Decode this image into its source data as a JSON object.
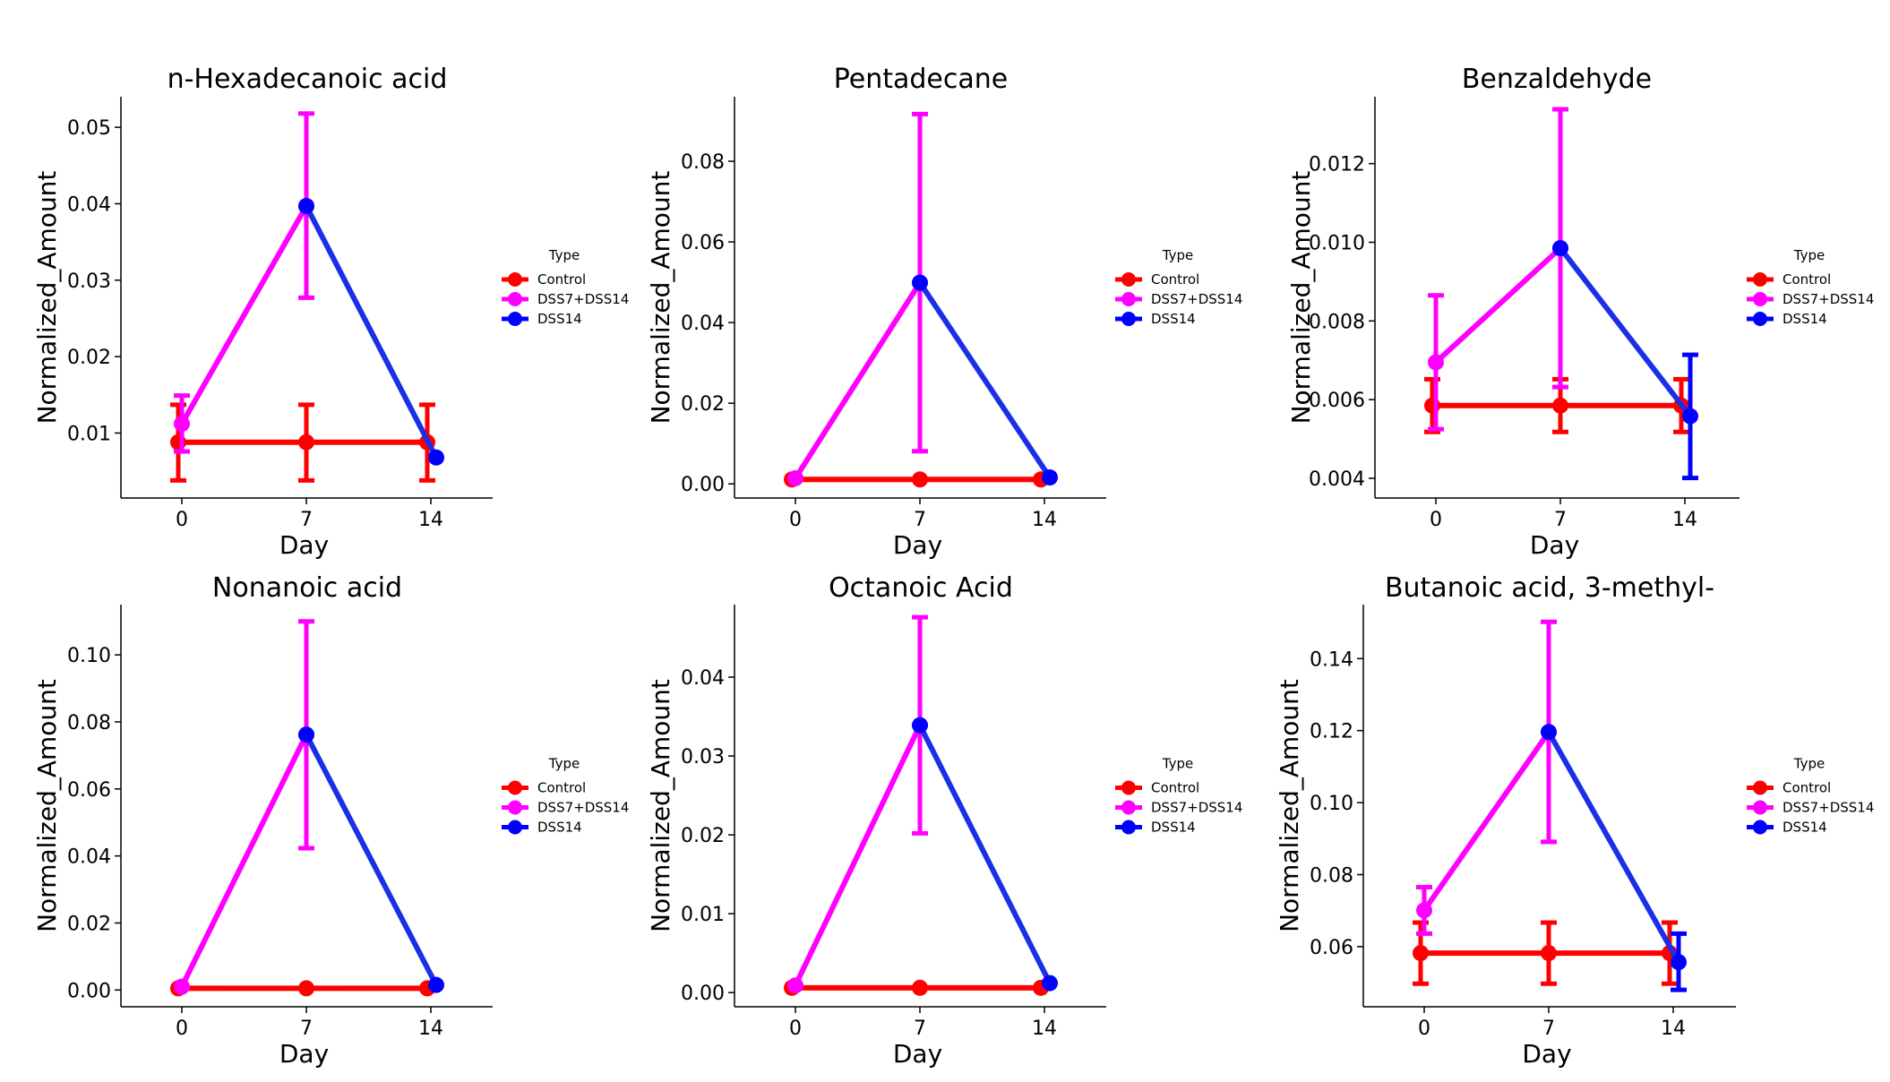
{
  "legend": {
    "title": "Type",
    "entries": [
      {
        "name": "Control",
        "color": "#ff0000"
      },
      {
        "name": "DSS7+DSS14",
        "color": "#ff00ff"
      },
      {
        "name": "DSS14",
        "color": "#0000ff"
      }
    ]
  },
  "chart_data": [
    {
      "type": "line",
      "title": "n-Hexadecanoic acid",
      "xlabel": "Day",
      "ylabel": "Normalized_Amount",
      "xticks": [
        "0",
        "7",
        "14"
      ],
      "ylim": [
        0.0015,
        0.054
      ],
      "yticks": [
        0.01,
        0.02,
        0.03,
        0.04,
        0.05
      ],
      "yticklabels": [
        "0.01",
        "0.02",
        "0.03",
        "0.04",
        "0.05"
      ],
      "grid": false,
      "legend_position": "right",
      "series": [
        {
          "name": "Control",
          "points": [
            {
              "x": 0,
              "y": 0.0088,
              "err_low": 0.0038,
              "err_high": 0.0137
            },
            {
              "x": 7,
              "y": 0.0088,
              "err_low": 0.0038,
              "err_high": 0.0137
            },
            {
              "x": 14,
              "y": 0.0088,
              "err_low": 0.0038,
              "err_high": 0.0137
            }
          ]
        },
        {
          "name": "DSS7+DSS14",
          "points": [
            {
              "x": 0,
              "y": 0.0112,
              "err_low": 0.0076,
              "err_high": 0.0149
            },
            {
              "x": 7,
              "y": 0.0397,
              "err_low": 0.0277,
              "err_high": 0.0518
            }
          ]
        },
        {
          "name": "DSS14",
          "points": [
            {
              "x": 7,
              "y": 0.0397
            },
            {
              "x": 14,
              "y": 0.0068
            }
          ]
        }
      ]
    },
    {
      "type": "line",
      "title": "Pentadecane",
      "xlabel": "Day",
      "ylabel": "Normalized_Amount",
      "xticks": [
        "0",
        "7",
        "14"
      ],
      "ylim": [
        -0.0035,
        0.096
      ],
      "yticks": [
        0.0,
        0.02,
        0.04,
        0.06,
        0.08
      ],
      "yticklabels": [
        "0.00",
        "0.02",
        "0.04",
        "0.06",
        "0.08"
      ],
      "grid": false,
      "legend_position": "right",
      "series": [
        {
          "name": "Control",
          "points": [
            {
              "x": 0,
              "y": 0.0011
            },
            {
              "x": 7,
              "y": 0.0011
            },
            {
              "x": 14,
              "y": 0.0011
            }
          ]
        },
        {
          "name": "DSS7+DSS14",
          "points": [
            {
              "x": 0,
              "y": 0.0014
            },
            {
              "x": 7,
              "y": 0.0499,
              "err_low": 0.0081,
              "err_high": 0.0917
            }
          ]
        },
        {
          "name": "DSS14",
          "points": [
            {
              "x": 7,
              "y": 0.0499
            },
            {
              "x": 14,
              "y": 0.0016
            }
          ]
        }
      ]
    },
    {
      "type": "line",
      "title": "Benzaldehyde",
      "xlabel": "Day",
      "ylabel": "Normalized_Amount",
      "xticks": [
        "0",
        "7",
        "14"
      ],
      "ylim": [
        0.0035,
        0.0137
      ],
      "yticks": [
        0.004,
        0.006,
        0.008,
        0.01,
        0.012
      ],
      "yticklabels": [
        "0.004",
        "0.006",
        "0.008",
        "0.010",
        "0.012"
      ],
      "grid": false,
      "legend_position": "right",
      "series": [
        {
          "name": "Control",
          "points": [
            {
              "x": 0,
              "y": 0.00585,
              "err_low": 0.00518,
              "err_high": 0.00652
            },
            {
              "x": 7,
              "y": 0.00585,
              "err_low": 0.00518,
              "err_high": 0.00652
            },
            {
              "x": 14,
              "y": 0.00585,
              "err_low": 0.00518,
              "err_high": 0.00652
            }
          ]
        },
        {
          "name": "DSS7+DSS14",
          "points": [
            {
              "x": 0,
              "y": 0.00695,
              "err_low": 0.00525,
              "err_high": 0.00865
            },
            {
              "x": 7,
              "y": 0.00985,
              "err_low": 0.00632,
              "err_high": 0.01338
            }
          ]
        },
        {
          "name": "DSS14",
          "points": [
            {
              "x": 7,
              "y": 0.00985
            },
            {
              "x": 14,
              "y": 0.00558,
              "err_low": 0.00401,
              "err_high": 0.00714
            }
          ]
        }
      ]
    },
    {
      "type": "line",
      "title": "Nonanoic acid",
      "xlabel": "Day",
      "ylabel": "Normalized_Amount",
      "xticks": [
        "0",
        "7",
        "14"
      ],
      "ylim": [
        -0.005,
        0.115
      ],
      "yticks": [
        0.0,
        0.02,
        0.04,
        0.06,
        0.08,
        0.1
      ],
      "yticklabels": [
        "0.00",
        "0.02",
        "0.04",
        "0.06",
        "0.08",
        "0.10"
      ],
      "grid": false,
      "legend_position": "right",
      "series": [
        {
          "name": "Control",
          "points": [
            {
              "x": 0,
              "y": 0.0005
            },
            {
              "x": 7,
              "y": 0.0005
            },
            {
              "x": 14,
              "y": 0.0005
            }
          ]
        },
        {
          "name": "DSS7+DSS14",
          "points": [
            {
              "x": 0,
              "y": 0.001
            },
            {
              "x": 7,
              "y": 0.0762,
              "err_low": 0.0423,
              "err_high": 0.11
            }
          ]
        },
        {
          "name": "DSS14",
          "points": [
            {
              "x": 7,
              "y": 0.0762
            },
            {
              "x": 14,
              "y": 0.0015
            }
          ]
        }
      ]
    },
    {
      "type": "line",
      "title": "Octanoic Acid",
      "xlabel": "Day",
      "ylabel": "Normalized_Amount",
      "xticks": [
        "0",
        "7",
        "14"
      ],
      "ylim": [
        -0.0018,
        0.0492
      ],
      "yticks": [
        0.0,
        0.01,
        0.02,
        0.03,
        0.04
      ],
      "yticklabels": [
        "0.00",
        "0.01",
        "0.02",
        "0.03",
        "0.04"
      ],
      "grid": false,
      "legend_position": "right",
      "series": [
        {
          "name": "Control",
          "points": [
            {
              "x": 0,
              "y": 0.0006
            },
            {
              "x": 7,
              "y": 0.0006
            },
            {
              "x": 14,
              "y": 0.0006
            }
          ]
        },
        {
          "name": "DSS7+DSS14",
          "points": [
            {
              "x": 0,
              "y": 0.0009
            },
            {
              "x": 7,
              "y": 0.0339,
              "err_low": 0.0202,
              "err_high": 0.0476
            }
          ]
        },
        {
          "name": "DSS14",
          "points": [
            {
              "x": 7,
              "y": 0.0339
            },
            {
              "x": 14,
              "y": 0.0012
            }
          ]
        }
      ]
    },
    {
      "type": "line",
      "title": "Butanoic acid, 3-methyl-",
      "xlabel": "Day",
      "ylabel": "Normalized_Amount",
      "xticks": [
        "0",
        "7",
        "14"
      ],
      "ylim": [
        0.0433,
        0.155
      ],
      "yticks": [
        0.06,
        0.08,
        0.1,
        0.12,
        0.14
      ],
      "yticklabels": [
        "0.06",
        "0.08",
        "0.10",
        "0.12",
        "0.14"
      ],
      "grid": false,
      "legend_position": "right",
      "series": [
        {
          "name": "Control",
          "points": [
            {
              "x": 0,
              "y": 0.0582,
              "err_low": 0.0497,
              "err_high": 0.0667
            },
            {
              "x": 7,
              "y": 0.0582,
              "err_low": 0.0497,
              "err_high": 0.0667
            },
            {
              "x": 14,
              "y": 0.0582,
              "err_low": 0.0497,
              "err_high": 0.0667
            }
          ]
        },
        {
          "name": "DSS7+DSS14",
          "points": [
            {
              "x": 0,
              "y": 0.0701,
              "err_low": 0.0636,
              "err_high": 0.0765
            },
            {
              "x": 7,
              "y": 0.1196,
              "err_low": 0.0891,
              "err_high": 0.1502
            }
          ]
        },
        {
          "name": "DSS14",
          "points": [
            {
              "x": 7,
              "y": 0.1196
            },
            {
              "x": 14,
              "y": 0.0557,
              "err_low": 0.048,
              "err_high": 0.0636
            }
          ]
        }
      ]
    }
  ]
}
